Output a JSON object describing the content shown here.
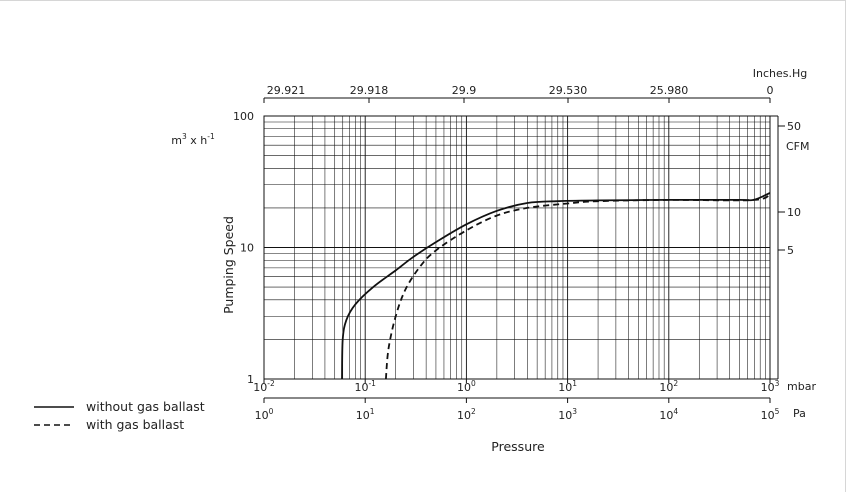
{
  "chart_data": {
    "type": "line",
    "x_scale": "log",
    "y_scale": "log",
    "xlim": [
      0.01,
      1000
    ],
    "ylim": [
      1,
      100
    ],
    "grid": true,
    "xlabel": "Pressure",
    "ylabel": "Pumping Speed",
    "y_unit": "m³ x h⁻¹",
    "axes": {
      "bottom_mbar": {
        "unit": "mbar",
        "ticks": [
          "10-2",
          "10-1",
          "100",
          "101",
          "102",
          "103"
        ]
      },
      "bottom_pa": {
        "unit": "Pa",
        "ticks": [
          "100",
          "101",
          "102",
          "103",
          "104",
          "105"
        ]
      },
      "top_inches_hg": {
        "unit": "Inches.Hg",
        "ticks": [
          "29.921",
          "29.918",
          "29.9",
          "29.530",
          "25.980",
          "0"
        ]
      },
      "left_m3h": {
        "ticks": [
          "100",
          "10",
          "1"
        ]
      },
      "right_cfm": {
        "unit": "CFM",
        "ticks": [
          "50",
          "10",
          "5"
        ]
      }
    },
    "legend_position": "bottom-left",
    "series": [
      {
        "name": "without gas ballast",
        "style": "solid",
        "points": [
          [
            0.059,
            1.0
          ],
          [
            0.06,
            2.0
          ],
          [
            0.065,
            2.8
          ],
          [
            0.08,
            3.7
          ],
          [
            0.12,
            5.0
          ],
          [
            0.2,
            6.7
          ],
          [
            0.3,
            8.5
          ],
          [
            0.5,
            11.0
          ],
          [
            1,
            15.0
          ],
          [
            2,
            19.0
          ],
          [
            4,
            21.8
          ],
          [
            8,
            22.5
          ],
          [
            20,
            22.8
          ],
          [
            100,
            23.0
          ],
          [
            500,
            23.0
          ],
          [
            700,
            23.1
          ],
          [
            1000,
            26.0
          ]
        ]
      },
      {
        "name": "with gas ballast",
        "style": "dashed",
        "points": [
          [
            0.16,
            1.0
          ],
          [
            0.17,
            1.7
          ],
          [
            0.2,
            3.0
          ],
          [
            0.25,
            4.8
          ],
          [
            0.35,
            7.2
          ],
          [
            0.5,
            9.5
          ],
          [
            1,
            13.5
          ],
          [
            2,
            17.5
          ],
          [
            4,
            20.0
          ],
          [
            10,
            21.6
          ],
          [
            20,
            22.5
          ],
          [
            100,
            23.0
          ],
          [
            700,
            23.0
          ],
          [
            1000,
            26.0
          ]
        ]
      }
    ]
  }
}
